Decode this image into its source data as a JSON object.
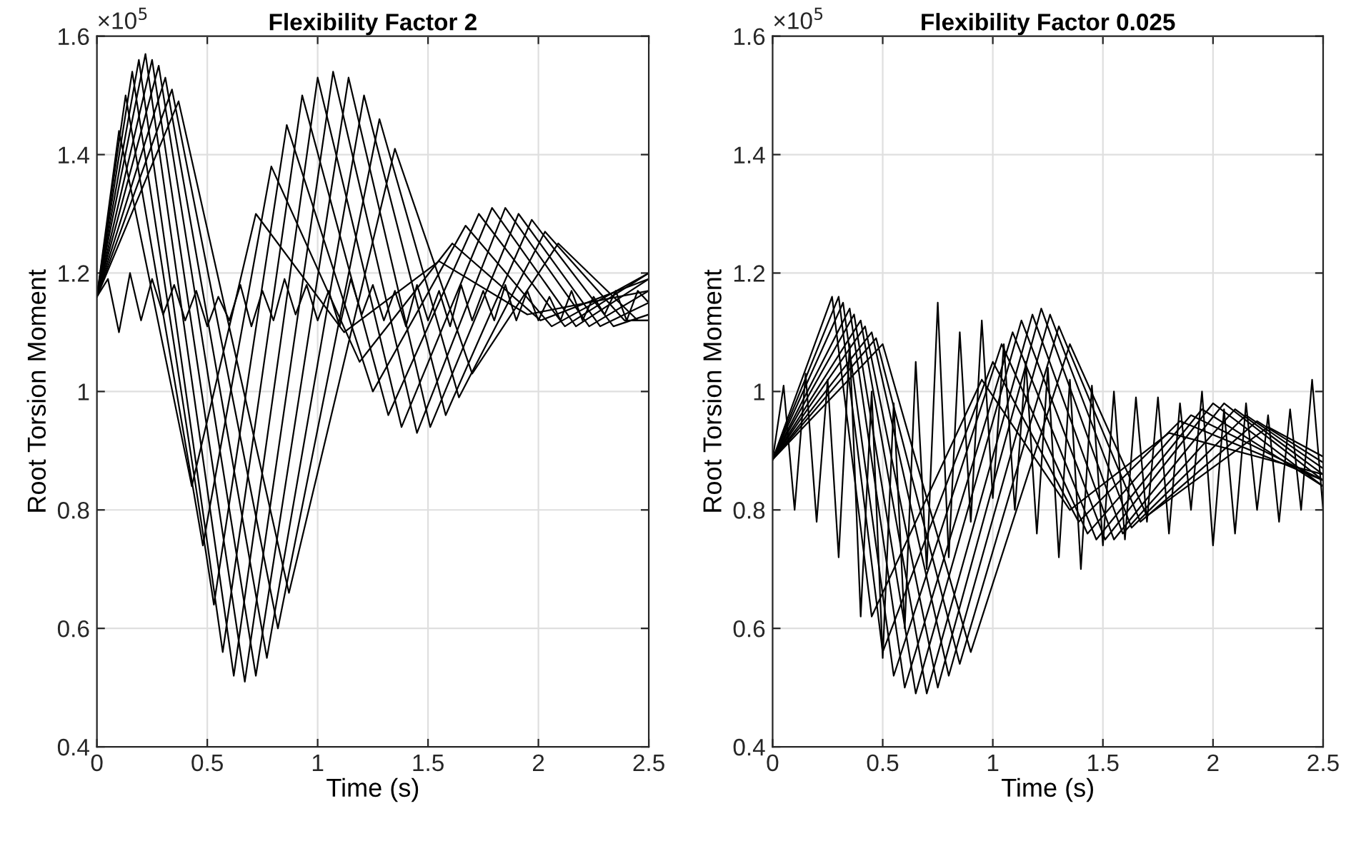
{
  "chart_data": [
    {
      "type": "line",
      "title": "Flexibility Factor 2",
      "xlabel": "Time (s)",
      "ylabel": "Root Torsion Moment",
      "annotations": [
        "×10$^{5}$"
      ],
      "xlim": [
        0,
        2.5
      ],
      "xticks": [
        0,
        0.5,
        1,
        1.5,
        2,
        2.5
      ],
      "ylim": [
        0.4,
        1.6
      ],
      "yticks": [
        0.4,
        0.6,
        0.8,
        1,
        1.2,
        1.4,
        1.6
      ],
      "grid": true,
      "legend": false,
      "marker": "none",
      "line_style": "solid",
      "x": [
        0,
        0.05,
        0.1,
        0.15,
        0.2,
        0.25,
        0.3,
        0.35,
        0.4,
        0.45,
        0.5,
        0.55,
        0.6,
        0.65,
        0.7,
        0.75,
        0.8,
        0.85,
        0.9,
        0.95,
        1,
        1.05,
        1.1,
        1.15,
        1.2,
        1.25,
        1.3,
        1.35,
        1.4,
        1.45,
        1.5,
        1.55,
        1.6,
        1.65,
        1.7,
        1.75,
        1.8,
        1.85,
        1.9,
        1.95,
        2,
        2.05,
        2.1,
        2.15,
        2.2,
        2.25,
        2.3,
        2.35,
        2.4,
        2.45,
        2.5
      ],
      "series": [
        {
          "color": "#000000",
          "x": [
            0,
            0.1,
            0.43,
            0.72,
            1.12,
            1.55,
            1.95,
            2.5
          ],
          "values": [
            1.16,
            1.44,
            0.84,
            1.3,
            1.1,
            1.22,
            1.13,
            1.17
          ]
        },
        {
          "color": "#000000",
          "x": [
            0,
            0.13,
            0.48,
            0.79,
            1.19,
            1.61,
            2.01,
            2.5
          ],
          "values": [
            1.16,
            1.5,
            0.74,
            1.38,
            1.05,
            1.25,
            1.12,
            1.19
          ]
        },
        {
          "color": "#000000",
          "x": [
            0,
            0.16,
            0.53,
            0.86,
            1.25,
            1.67,
            2.06,
            2.5
          ],
          "values": [
            1.16,
            1.54,
            0.64,
            1.45,
            1.0,
            1.28,
            1.11,
            1.2
          ]
        },
        {
          "color": "#000000",
          "x": [
            0,
            0.19,
            0.57,
            0.93,
            1.32,
            1.73,
            2.12,
            2.5
          ],
          "values": [
            1.16,
            1.56,
            0.56,
            1.5,
            0.96,
            1.3,
            1.11,
            1.2
          ]
        },
        {
          "color": "#000000",
          "x": [
            0,
            0.22,
            0.62,
            1.0,
            1.38,
            1.79,
            2.17,
            2.5
          ],
          "values": [
            1.16,
            1.57,
            0.52,
            1.53,
            0.94,
            1.31,
            1.11,
            1.19
          ]
        },
        {
          "color": "#000000",
          "x": [
            0,
            0.25,
            0.67,
            1.07,
            1.45,
            1.85,
            2.23,
            2.5
          ],
          "values": [
            1.16,
            1.56,
            0.51,
            1.54,
            0.93,
            1.31,
            1.11,
            1.17
          ]
        },
        {
          "color": "#000000",
          "x": [
            0,
            0.28,
            0.72,
            1.14,
            1.51,
            1.91,
            2.28,
            2.5
          ],
          "values": [
            1.16,
            1.55,
            0.52,
            1.53,
            0.94,
            1.3,
            1.11,
            1.15
          ]
        },
        {
          "color": "#000000",
          "x": [
            0,
            0.31,
            0.77,
            1.21,
            1.58,
            1.97,
            2.34,
            2.5
          ],
          "values": [
            1.16,
            1.53,
            0.55,
            1.5,
            0.96,
            1.29,
            1.11,
            1.13
          ]
        },
        {
          "color": "#000000",
          "x": [
            0,
            0.34,
            0.82,
            1.28,
            1.64,
            2.03,
            2.39,
            2.5
          ],
          "values": [
            1.16,
            1.51,
            0.6,
            1.46,
            0.99,
            1.27,
            1.12,
            1.12
          ]
        },
        {
          "color": "#000000",
          "x": [
            0,
            0.37,
            0.87,
            1.35,
            1.7,
            2.09,
            2.45,
            2.5
          ],
          "values": [
            1.16,
            1.49,
            0.66,
            1.41,
            1.03,
            1.25,
            1.12,
            1.12
          ]
        },
        {
          "color": "#000000",
          "values": [
            1.16,
            1.19,
            1.1,
            1.2,
            1.12,
            1.19,
            1.13,
            1.18,
            1.12,
            1.17,
            1.11,
            1.16,
            1.12,
            1.18,
            1.11,
            1.17,
            1.12,
            1.19,
            1.13,
            1.18,
            1.12,
            1.17,
            1.11,
            1.19,
            1.13,
            1.18,
            1.12,
            1.17,
            1.11,
            1.18,
            1.12,
            1.17,
            1.11,
            1.18,
            1.12,
            1.17,
            1.12,
            1.18,
            1.12,
            1.17,
            1.12,
            1.16,
            1.12,
            1.17,
            1.12,
            1.16,
            1.13,
            1.17,
            1.12,
            1.17,
            1.15
          ]
        }
      ]
    },
    {
      "type": "line",
      "title": "Flexibility Factor 0.025",
      "xlabel": "Time (s)",
      "ylabel": "Root Torsion Moment",
      "annotations": [
        "×10$^{5}$"
      ],
      "xlim": [
        0,
        2.5
      ],
      "xticks": [
        0,
        0.5,
        1,
        1.5,
        2,
        2.5
      ],
      "ylim": [
        0.4,
        1.6
      ],
      "yticks": [
        0.4,
        0.6,
        0.8,
        1,
        1.2,
        1.4,
        1.6
      ],
      "grid": true,
      "legend": false,
      "marker": "none",
      "line_style": "solid",
      "x": [
        0,
        0.05,
        0.1,
        0.15,
        0.2,
        0.25,
        0.3,
        0.35,
        0.4,
        0.45,
        0.5,
        0.55,
        0.6,
        0.65,
        0.7,
        0.75,
        0.8,
        0.85,
        0.9,
        0.95,
        1,
        1.05,
        1.1,
        1.15,
        1.2,
        1.25,
        1.3,
        1.35,
        1.4,
        1.45,
        1.5,
        1.55,
        1.6,
        1.65,
        1.7,
        1.75,
        1.8,
        1.85,
        1.9,
        1.95,
        2,
        2.05,
        2.1,
        2.15,
        2.2,
        2.25,
        2.3,
        2.35,
        2.4,
        2.45,
        2.5
      ],
      "series": [
        {
          "color": "#000000",
          "x": [
            0,
            0.27,
            0.45,
            0.95,
            1.35,
            1.8,
            2.5
          ],
          "values": [
            0.885,
            1.16,
            0.62,
            1.02,
            0.8,
            0.93,
            0.86
          ]
        },
        {
          "color": "#000000",
          "x": [
            0,
            0.3,
            0.5,
            1.0,
            1.39,
            1.85,
            2.5
          ],
          "values": [
            0.885,
            1.16,
            0.56,
            1.05,
            0.78,
            0.95,
            0.85
          ]
        },
        {
          "color": "#000000",
          "x": [
            0,
            0.32,
            0.55,
            1.04,
            1.43,
            1.9,
            2.5
          ],
          "values": [
            0.885,
            1.15,
            0.52,
            1.08,
            0.76,
            0.96,
            0.85
          ]
        },
        {
          "color": "#000000",
          "x": [
            0,
            0.35,
            0.6,
            1.09,
            1.47,
            1.95,
            2.5
          ],
          "values": [
            0.885,
            1.14,
            0.5,
            1.1,
            0.75,
            0.97,
            0.84
          ]
        },
        {
          "color": "#000000",
          "x": [
            0,
            0.37,
            0.65,
            1.13,
            1.51,
            2.0,
            2.5
          ],
          "values": [
            0.885,
            1.13,
            0.49,
            1.12,
            0.75,
            0.98,
            0.84
          ]
        },
        {
          "color": "#000000",
          "x": [
            0,
            0.4,
            0.7,
            1.18,
            1.55,
            2.05,
            2.5
          ],
          "values": [
            0.885,
            1.12,
            0.49,
            1.13,
            0.75,
            0.98,
            0.85
          ]
        },
        {
          "color": "#000000",
          "x": [
            0,
            0.42,
            0.75,
            1.22,
            1.59,
            2.1,
            2.5
          ],
          "values": [
            0.885,
            1.11,
            0.5,
            1.14,
            0.76,
            0.97,
            0.86
          ]
        },
        {
          "color": "#000000",
          "x": [
            0,
            0.45,
            0.8,
            1.26,
            1.63,
            2.15,
            2.5
          ],
          "values": [
            0.885,
            1.1,
            0.52,
            1.13,
            0.77,
            0.96,
            0.87
          ]
        },
        {
          "color": "#000000",
          "x": [
            0,
            0.47,
            0.85,
            1.3,
            1.67,
            2.2,
            2.5
          ],
          "values": [
            0.885,
            1.09,
            0.54,
            1.11,
            0.78,
            0.95,
            0.88
          ]
        },
        {
          "color": "#000000",
          "x": [
            0,
            0.5,
            0.9,
            1.35,
            1.7,
            2.25,
            2.5
          ],
          "values": [
            0.885,
            1.08,
            0.56,
            1.08,
            0.79,
            0.94,
            0.89
          ]
        },
        {
          "color": "#000000",
          "values": [
            0.885,
            1.01,
            0.8,
            1.03,
            0.78,
            1.02,
            0.72,
            1.08,
            0.62,
            1.0,
            0.55,
            0.98,
            0.6,
            1.05,
            0.7,
            1.15,
            0.72,
            1.1,
            0.78,
            1.12,
            0.82,
            1.08,
            0.8,
            1.05,
            0.76,
            1.04,
            0.72,
            1.02,
            0.7,
            1.01,
            0.74,
            1.0,
            0.75,
            0.99,
            0.78,
            0.99,
            0.76,
            0.98,
            0.8,
            1.0,
            0.74,
            0.97,
            0.76,
            0.98,
            0.8,
            0.96,
            0.78,
            0.97,
            0.8,
            1.02,
            0.8
          ]
        }
      ]
    }
  ]
}
